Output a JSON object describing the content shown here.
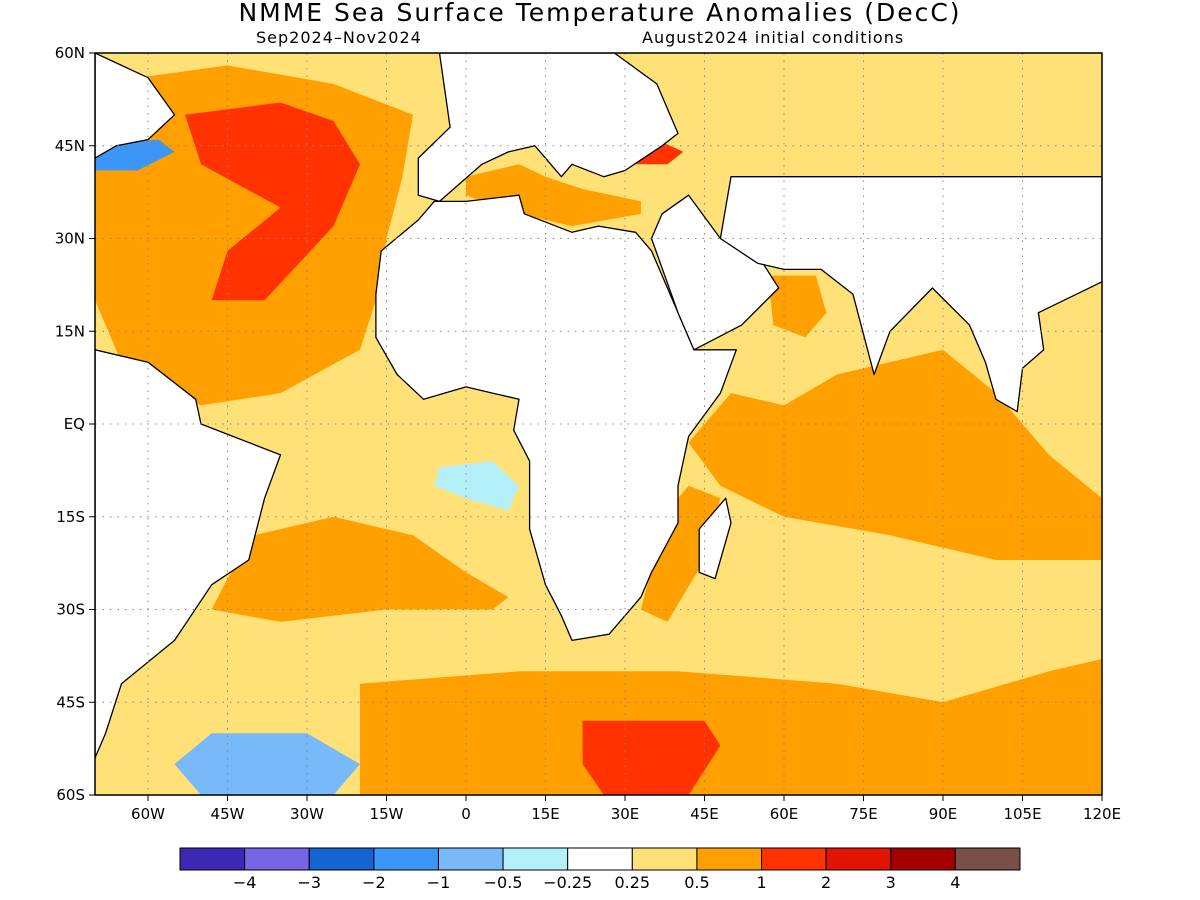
{
  "title": "NMME Sea Surface Temperature Anomalies (DecC)",
  "period": "Sep2024–Nov2024",
  "initial_conditions": "August2024 initial conditions",
  "map": {
    "lon_range": [
      -70,
      120
    ],
    "lat_range": [
      -60,
      60
    ],
    "lat_ticks": [
      {
        "value": 60,
        "label": "60N"
      },
      {
        "value": 45,
        "label": "45N"
      },
      {
        "value": 30,
        "label": "30N"
      },
      {
        "value": 15,
        "label": "15N"
      },
      {
        "value": 0,
        "label": "EQ"
      },
      {
        "value": -15,
        "label": "15S"
      },
      {
        "value": -30,
        "label": "30S"
      },
      {
        "value": -45,
        "label": "45S"
      },
      {
        "value": -60,
        "label": "60S"
      }
    ],
    "lon_ticks": [
      {
        "value": -60,
        "label": "60W"
      },
      {
        "value": -45,
        "label": "45W"
      },
      {
        "value": -30,
        "label": "30W"
      },
      {
        "value": -15,
        "label": "15W"
      },
      {
        "value": 0,
        "label": "0"
      },
      {
        "value": 15,
        "label": "15E"
      },
      {
        "value": 30,
        "label": "30E"
      },
      {
        "value": 45,
        "label": "45E"
      },
      {
        "value": 60,
        "label": "60E"
      },
      {
        "value": 75,
        "label": "75E"
      },
      {
        "value": 90,
        "label": "90E"
      },
      {
        "value": 105,
        "label": "105E"
      },
      {
        "value": 120,
        "label": "120E"
      }
    ],
    "regions": [
      {
        "name": "Central Atlantic",
        "anomaly_band": "0.5 to 1",
        "color": "#ffa000",
        "polygon": [
          [
            -70,
            55
          ],
          [
            -45,
            58
          ],
          [
            -25,
            55
          ],
          [
            -10,
            50
          ],
          [
            -12,
            40
          ],
          [
            -15,
            30
          ],
          [
            -17,
            20
          ],
          [
            -20,
            12
          ],
          [
            -35,
            5
          ],
          [
            -50,
            3
          ],
          [
            -65,
            10
          ],
          [
            -70,
            20
          ]
        ]
      },
      {
        "name": "North Atlantic Warm Core",
        "anomaly_band": "1 to 2",
        "color": "#ff3200",
        "polygon": [
          [
            -53,
            50
          ],
          [
            -35,
            52
          ],
          [
            -25,
            49
          ],
          [
            -20,
            42
          ],
          [
            -25,
            32
          ],
          [
            -38,
            20
          ],
          [
            -48,
            20
          ],
          [
            -45,
            28
          ],
          [
            -35,
            35
          ],
          [
            -50,
            42
          ]
        ]
      },
      {
        "name": "Mediterranean",
        "anomaly_band": "0.5 to 1",
        "color": "#ffa000",
        "polygon": [
          [
            0,
            40
          ],
          [
            10,
            42
          ],
          [
            15,
            40
          ],
          [
            22,
            38
          ],
          [
            33,
            36
          ],
          [
            33,
            34
          ],
          [
            20,
            32
          ],
          [
            10,
            34
          ],
          [
            0,
            37
          ]
        ]
      },
      {
        "name": "Black Sea",
        "anomaly_band": "1 to 2",
        "color": "#ff3200",
        "polygon": [
          [
            28,
            46
          ],
          [
            36,
            46
          ],
          [
            41,
            44
          ],
          [
            38,
            42
          ],
          [
            30,
            42
          ]
        ]
      },
      {
        "name": "Arabian Sea",
        "anomaly_band": "0.5 to 1",
        "color": "#ffa000",
        "polygon": [
          [
            57,
            24
          ],
          [
            66,
            24
          ],
          [
            68,
            18
          ],
          [
            64,
            14
          ],
          [
            58,
            16
          ]
        ]
      },
      {
        "name": "Indian Ocean Equatorial",
        "anomaly_band": "0.5 to 1",
        "color": "#ffa000",
        "polygon": [
          [
            70,
            8
          ],
          [
            90,
            12
          ],
          [
            100,
            5
          ],
          [
            110,
            -5
          ],
          [
            120,
            -12
          ],
          [
            120,
            -22
          ],
          [
            100,
            -22
          ],
          [
            80,
            -18
          ],
          [
            60,
            -15
          ],
          [
            48,
            -10
          ],
          [
            42,
            -3
          ],
          [
            45,
            0
          ],
          [
            50,
            5
          ],
          [
            60,
            3
          ]
        ]
      },
      {
        "name": "Mozambique Channel",
        "anomaly_band": "0.5 to 1",
        "color": "#ffa000",
        "polygon": [
          [
            42,
            -10
          ],
          [
            48,
            -12
          ],
          [
            45,
            -22
          ],
          [
            38,
            -32
          ],
          [
            33,
            -30
          ],
          [
            36,
            -20
          ],
          [
            40,
            -12
          ]
        ]
      },
      {
        "name": "South Atlantic",
        "anomaly_band": "0.5 to 1",
        "color": "#ffa000",
        "polygon": [
          [
            -40,
            -18
          ],
          [
            -25,
            -15
          ],
          [
            -10,
            -18
          ],
          [
            0,
            -24
          ],
          [
            8,
            -28
          ],
          [
            5,
            -30
          ],
          [
            -15,
            -30
          ],
          [
            -35,
            -32
          ],
          [
            -48,
            -30
          ],
          [
            -45,
            -25
          ]
        ]
      },
      {
        "name": "Southern Ocean",
        "anomaly_band": "0.5 to 1",
        "color": "#ffa000",
        "polygon": [
          [
            -20,
            -42
          ],
          [
            10,
            -40
          ],
          [
            40,
            -40
          ],
          [
            70,
            -42
          ],
          [
            90,
            -45
          ],
          [
            110,
            -40
          ],
          [
            120,
            -38
          ],
          [
            120,
            -60
          ],
          [
            -20,
            -60
          ]
        ]
      },
      {
        "name": "Southern Ocean Warm Core",
        "anomaly_band": "1 to 2",
        "color": "#ff3200",
        "polygon": [
          [
            22,
            -48
          ],
          [
            45,
            -48
          ],
          [
            48,
            -52
          ],
          [
            42,
            -60
          ],
          [
            26,
            -60
          ],
          [
            22,
            -55
          ]
        ]
      },
      {
        "name": "Equatorial Atlantic Cool",
        "anomaly_band": "-0.5 to -0.25",
        "color": "#b4f0fa",
        "polygon": [
          [
            -5,
            -7
          ],
          [
            5,
            -6
          ],
          [
            10,
            -10
          ],
          [
            8,
            -14
          ],
          [
            0,
            -12
          ],
          [
            -6,
            -10
          ]
        ]
      },
      {
        "name": "Labrador Sea Cool",
        "anomaly_band": "-2 to -1",
        "color": "#3c96f5",
        "polygon": [
          [
            -70,
            45
          ],
          [
            -58,
            46
          ],
          [
            -55,
            44
          ],
          [
            -62,
            41
          ],
          [
            -70,
            41
          ]
        ]
      },
      {
        "name": "South Atlantic Cool",
        "anomaly_band": "-1 to -0.5",
        "color": "#78b9fa",
        "polygon": [
          [
            -48,
            -50
          ],
          [
            -30,
            -50
          ],
          [
            -20,
            -55
          ],
          [
            -25,
            -60
          ],
          [
            -50,
            -60
          ],
          [
            -55,
            -55
          ]
        ]
      }
    ],
    "land": [
      {
        "name": "Africa",
        "polygon": [
          [
            -17,
            21
          ],
          [
            -16,
            28
          ],
          [
            -9,
            33
          ],
          [
            -6,
            36
          ],
          [
            0,
            36
          ],
          [
            10,
            37
          ],
          [
            11,
            34
          ],
          [
            20,
            31
          ],
          [
            25,
            32
          ],
          [
            32,
            31
          ],
          [
            35,
            28
          ],
          [
            39,
            20
          ],
          [
            43,
            12
          ],
          [
            51,
            12
          ],
          [
            48,
            5
          ],
          [
            42,
            -2
          ],
          [
            40,
            -10
          ],
          [
            40,
            -16
          ],
          [
            35,
            -24
          ],
          [
            33,
            -28
          ],
          [
            27,
            -34
          ],
          [
            20,
            -35
          ],
          [
            18,
            -31
          ],
          [
            15,
            -26
          ],
          [
            12,
            -17
          ],
          [
            12,
            -6
          ],
          [
            9,
            -1
          ],
          [
            10,
            4
          ],
          [
            5,
            5
          ],
          [
            0,
            6
          ],
          [
            -8,
            4
          ],
          [
            -13,
            8
          ],
          [
            -17,
            14
          ]
        ]
      },
      {
        "name": "Arabia",
        "polygon": [
          [
            35,
            30
          ],
          [
            37,
            34
          ],
          [
            42,
            37
          ],
          [
            48,
            30
          ],
          [
            56,
            26
          ],
          [
            59,
            22
          ],
          [
            52,
            16
          ],
          [
            43,
            12
          ],
          [
            40,
            18
          ]
        ]
      },
      {
        "name": "Europe",
        "polygon": [
          [
            -9,
            43
          ],
          [
            -9,
            37
          ],
          [
            -5,
            36
          ],
          [
            3,
            42
          ],
          [
            8,
            44
          ],
          [
            13,
            45
          ],
          [
            18,
            40
          ],
          [
            20,
            42
          ],
          [
            26,
            40
          ],
          [
            30,
            41
          ],
          [
            37,
            45
          ],
          [
            40,
            47
          ],
          [
            36,
            55
          ],
          [
            28,
            60
          ],
          [
            -5,
            60
          ],
          [
            -3,
            48
          ]
        ]
      },
      {
        "name": "South America",
        "polygon": [
          [
            -70,
            12
          ],
          [
            -60,
            10
          ],
          [
            -51,
            4
          ],
          [
            -50,
            0
          ],
          [
            -35,
            -5
          ],
          [
            -38,
            -12
          ],
          [
            -41,
            -22
          ],
          [
            -48,
            -26
          ],
          [
            -55,
            -35
          ],
          [
            -65,
            -42
          ],
          [
            -68,
            -50
          ],
          [
            -70,
            -54
          ]
        ]
      },
      {
        "name": "North America",
        "polygon": [
          [
            -70,
            60
          ],
          [
            -60,
            56
          ],
          [
            -55,
            50
          ],
          [
            -60,
            46
          ],
          [
            -66,
            45
          ],
          [
            -70,
            43
          ]
        ]
      },
      {
        "name": "Madagascar",
        "polygon": [
          [
            49,
            -12
          ],
          [
            50,
            -16
          ],
          [
            47,
            -25
          ],
          [
            44,
            -24
          ],
          [
            44,
            -17
          ]
        ]
      },
      {
        "name": "South and Southeast Asia",
        "polygon": [
          [
            60,
            25
          ],
          [
            67,
            25
          ],
          [
            73,
            21
          ],
          [
            77,
            8
          ],
          [
            80,
            15
          ],
          [
            88,
            22
          ],
          [
            95,
            16
          ],
          [
            98,
            10
          ],
          [
            100,
            4
          ],
          [
            104,
            2
          ],
          [
            105,
            9
          ],
          [
            109,
            12
          ],
          [
            108,
            18
          ],
          [
            120,
            23
          ],
          [
            120,
            40
          ],
          [
            50,
            40
          ],
          [
            48,
            30
          ],
          [
            55,
            26
          ]
        ]
      }
    ]
  },
  "colorbar": {
    "colors": [
      "#3c28b4",
      "#7864e6",
      "#1464d2",
      "#3c96f5",
      "#78b9fa",
      "#b4f0fa",
      "#ffffff",
      "#ffe178",
      "#ffa000",
      "#ff3200",
      "#e11400",
      "#a50000",
      "#785046"
    ],
    "labels": [
      "−4",
      "−3",
      "−2",
      "−1",
      "−0.5",
      "−0.25",
      "0.25",
      "0.5",
      "1",
      "2",
      "3",
      "4"
    ]
  }
}
